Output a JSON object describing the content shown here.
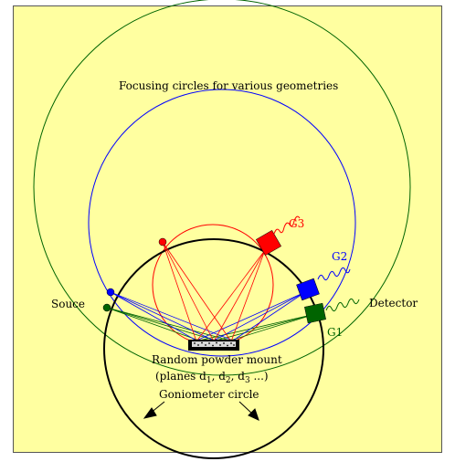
{
  "title": "Focusing circles for various geometries",
  "labels": {
    "source": "Souce",
    "detector": "Detector",
    "g1": "G1",
    "g2": "G2",
    "g3": "G3",
    "mount_line1": "Random powder mount",
    "mount_line2_prefix": "(planes d",
    "mount_sub1": "1",
    "mount_sep1": ", d",
    "mount_sub2": "2",
    "mount_sep2": ", d",
    "mount_sub3": "3",
    "mount_suffix": " ...)",
    "goniometer": "Goniometer circle"
  },
  "colors": {
    "background": "#ffffa0",
    "goniometer": "#000000",
    "g1": "#006400",
    "g2": "#0000ff",
    "g3": "#ff0000",
    "sample": "#000000"
  }
}
